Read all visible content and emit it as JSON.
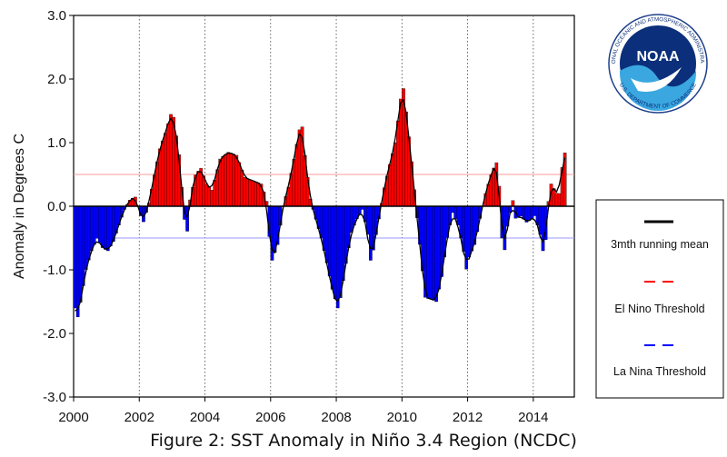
{
  "caption": "Figure 2: SST Anomaly in Niño 3.4 Region (NCDC)",
  "logo": {
    "text": "NOAA",
    "ring_top": "NATIONAL OCEANIC AND ATMOSPHERIC ADMINISTRATION",
    "ring_bottom": "U.S. DEPARTMENT OF COMMERCE"
  },
  "colors": {
    "positive": "#ff0000",
    "negative": "#0000ff",
    "running_mean": "#000000",
    "el_nino_line": "#ff9a9a",
    "la_nina_line": "#9a9aff"
  },
  "chart_data": {
    "type": "bar",
    "title": "",
    "xlabel": "",
    "ylabel": "Anomaly in Degrees C",
    "xlim": [
      2000,
      2015.25
    ],
    "ylim": [
      -3.0,
      3.0
    ],
    "x_ticks": [
      "2000",
      "2002",
      "2004",
      "2006",
      "2008",
      "2010",
      "2012",
      "2014"
    ],
    "y_ticks": [
      "3.0",
      "2.0",
      "1.0",
      "0.0",
      "-1.0",
      "-2.0",
      "-3.0"
    ],
    "grid": "vertical dotted at even years",
    "thresholds": [
      {
        "name": "El Nino Threshold",
        "value": 0.5
      },
      {
        "name": "La Nina Threshold",
        "value": -0.5
      }
    ],
    "legend": {
      "placement": "right",
      "entries": [
        {
          "label": "3mth running mean",
          "style": "solid-black"
        },
        {
          "label": "El Nino Threshold",
          "style": "dashed-red"
        },
        {
          "label": "La Nina Threshold",
          "style": "dashed-blue"
        }
      ]
    },
    "monthly_keyframes": [
      [
        2000.0,
        -1.6
      ],
      [
        2000.08,
        -1.75
      ],
      [
        2000.17,
        -1.5
      ],
      [
        2000.33,
        -1.0
      ],
      [
        2000.5,
        -0.7
      ],
      [
        2000.67,
        -0.5
      ],
      [
        2000.83,
        -0.65
      ],
      [
        2001.0,
        -0.7
      ],
      [
        2001.17,
        -0.55
      ],
      [
        2001.33,
        -0.3
      ],
      [
        2001.5,
        -0.05
      ],
      [
        2001.67,
        0.1
      ],
      [
        2001.83,
        0.15
      ],
      [
        2002.0,
        -0.15
      ],
      [
        2002.08,
        -0.25
      ],
      [
        2002.25,
        0.05
      ],
      [
        2002.42,
        0.5
      ],
      [
        2002.58,
        0.9
      ],
      [
        2002.75,
        1.15
      ],
      [
        2002.92,
        1.45
      ],
      [
        2003.0,
        1.4
      ],
      [
        2003.17,
        0.8
      ],
      [
        2003.33,
        -0.2
      ],
      [
        2003.42,
        -0.4
      ],
      [
        2003.5,
        0.1
      ],
      [
        2003.67,
        0.5
      ],
      [
        2003.83,
        0.6
      ],
      [
        2004.0,
        0.35
      ],
      [
        2004.17,
        0.25
      ],
      [
        2004.42,
        0.75
      ],
      [
        2004.67,
        0.85
      ],
      [
        2004.92,
        0.8
      ],
      [
        2005.17,
        0.45
      ],
      [
        2005.42,
        0.4
      ],
      [
        2005.67,
        0.35
      ],
      [
        2005.83,
        0.1
      ],
      [
        2005.92,
        -0.5
      ],
      [
        2006.0,
        -0.85
      ],
      [
        2006.17,
        -0.6
      ],
      [
        2006.33,
        0.0
      ],
      [
        2006.5,
        0.3
      ],
      [
        2006.67,
        0.75
      ],
      [
        2006.83,
        1.2
      ],
      [
        2006.92,
        1.25
      ],
      [
        2007.0,
        0.8
      ],
      [
        2007.17,
        0.1
      ],
      [
        2007.33,
        -0.2
      ],
      [
        2007.5,
        -0.5
      ],
      [
        2007.67,
        -0.9
      ],
      [
        2007.83,
        -1.3
      ],
      [
        2008.0,
        -1.6
      ],
      [
        2008.08,
        -1.45
      ],
      [
        2008.25,
        -0.9
      ],
      [
        2008.42,
        -0.4
      ],
      [
        2008.58,
        -0.2
      ],
      [
        2008.75,
        -0.05
      ],
      [
        2008.92,
        -0.45
      ],
      [
        2009.0,
        -0.85
      ],
      [
        2009.08,
        -0.7
      ],
      [
        2009.25,
        -0.2
      ],
      [
        2009.42,
        0.3
      ],
      [
        2009.58,
        0.65
      ],
      [
        2009.75,
        1.0
      ],
      [
        2009.92,
        1.7
      ],
      [
        2010.0,
        1.85
      ],
      [
        2010.08,
        1.5
      ],
      [
        2010.25,
        0.7
      ],
      [
        2010.42,
        -0.2
      ],
      [
        2010.58,
        -1.0
      ],
      [
        2010.67,
        -1.45
      ],
      [
        2010.83,
        -1.45
      ],
      [
        2011.0,
        -1.5
      ],
      [
        2011.17,
        -1.1
      ],
      [
        2011.33,
        -0.5
      ],
      [
        2011.5,
        -0.1
      ],
      [
        2011.67,
        -0.3
      ],
      [
        2011.83,
        -0.7
      ],
      [
        2011.92,
        -1.0
      ],
      [
        2012.0,
        -0.8
      ],
      [
        2012.17,
        -0.6
      ],
      [
        2012.33,
        -0.2
      ],
      [
        2012.5,
        0.2
      ],
      [
        2012.67,
        0.5
      ],
      [
        2012.83,
        0.7
      ],
      [
        2012.92,
        0.3
      ],
      [
        2013.0,
        -0.5
      ],
      [
        2013.08,
        -0.7
      ],
      [
        2013.17,
        -0.3
      ],
      [
        2013.33,
        0.1
      ],
      [
        2013.42,
        -0.2
      ],
      [
        2013.58,
        -0.15
      ],
      [
        2013.75,
        -0.25
      ],
      [
        2013.92,
        -0.2
      ],
      [
        2014.0,
        -0.15
      ],
      [
        2014.17,
        -0.45
      ],
      [
        2014.25,
        -0.7
      ],
      [
        2014.33,
        -0.55
      ],
      [
        2014.42,
        0.1
      ],
      [
        2014.5,
        0.35
      ],
      [
        2014.67,
        0.2
      ],
      [
        2014.75,
        0.2
      ],
      [
        2014.83,
        0.6
      ],
      [
        2014.92,
        0.85
      ]
    ]
  }
}
